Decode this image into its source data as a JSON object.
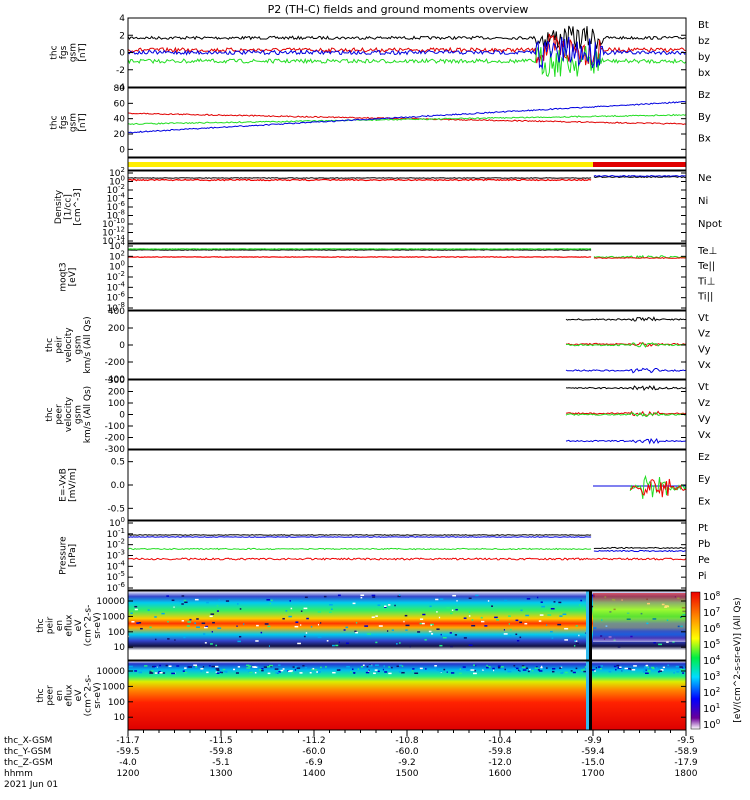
{
  "title": "P2 (TH-C) fields and ground moments overview",
  "colors": {
    "black": "#000000",
    "red": "#e00000",
    "green": "#22dd22",
    "blue": "#0000e0",
    "yellow": "#ffee00",
    "spec_red": "#ee2200"
  },
  "time_axis": {
    "start_hhmm": "1200",
    "end_hhmm": "1800",
    "row_labels": [
      "thc_X-GSM",
      "thc_Y-GSM",
      "thc_Z-GSM",
      "hhmm",
      "2021 Jun 01"
    ],
    "ticks": [
      {
        "x": "-11.7",
        "y": "-59.5",
        "z": "-4.0",
        "hhmm": "1200"
      },
      {
        "x": "-11.5",
        "y": "-59.8",
        "z": "-5.1",
        "hhmm": "1300"
      },
      {
        "x": "-11.2",
        "y": "-60.0",
        "z": "-6.9",
        "hhmm": "1400"
      },
      {
        "x": "-10.8",
        "y": "-60.0",
        "z": "-9.2",
        "hhmm": "1500"
      },
      {
        "x": "-10.4",
        "y": "-59.8",
        "z": "-12.0",
        "hhmm": "1600"
      },
      {
        "x": "-9.9",
        "y": "-59.4",
        "z": "-15.0",
        "hhmm": "1700"
      },
      {
        "x": "-9.5",
        "y": "-58.9",
        "z": "-17.9",
        "hhmm": "1800"
      }
    ]
  },
  "colorbar": {
    "label": "[eV/(cm^2-s-sr-eV)] (All Qs)",
    "ticks": [
      "10^8",
      "10^7",
      "10^6",
      "10^5",
      "10^4",
      "10^3",
      "10^2",
      "10^1",
      "10^0"
    ]
  },
  "chart_data": [
    {
      "type": "line",
      "ylabel": [
        "thc",
        "fgs",
        "gsm",
        "[nT]"
      ],
      "ylim": [
        -4,
        4
      ],
      "yticks": [
        "4",
        "2",
        "0",
        "-2",
        "-4"
      ],
      "legend": [
        "Bt",
        "bz",
        "by",
        "bx"
      ],
      "series": [
        {
          "name": "Bt",
          "level": 1.7,
          "color": "black"
        },
        {
          "name": "bz",
          "level": 0.3,
          "color": "red"
        },
        {
          "name": "by",
          "level": -1.0,
          "color": "green"
        },
        {
          "name": "bx",
          "level": 0.0,
          "color": "blue"
        }
      ]
    },
    {
      "type": "line",
      "ylabel": [
        "thc",
        "fgs",
        "gsm",
        "[nT]"
      ],
      "ylim": [
        -10,
        80
      ],
      "yticks": [
        "80",
        "60",
        "40",
        "20",
        "0"
      ],
      "legend": [
        "Bz",
        "By",
        "Bx"
      ],
      "series": [
        {
          "name": "Bz",
          "start": 47,
          "end": 33,
          "color": "red"
        },
        {
          "name": "By",
          "start": 33,
          "end": 45,
          "color": "green"
        },
        {
          "name": "Bx",
          "start": 22,
          "end": 62,
          "color": "blue"
        }
      ]
    },
    {
      "type": "bar",
      "ylabel": [],
      "legend": [],
      "segments": [
        {
          "from": "1200",
          "to": "1700",
          "color": "yellow"
        },
        {
          "from": "1700",
          "to": "1800",
          "color": "red"
        }
      ]
    },
    {
      "type": "line",
      "scale": "log",
      "ylabel": [
        "Density",
        "[1/cc]",
        "[cm^-3]"
      ],
      "yticks": [
        "10^2",
        "10^0",
        "10^-2",
        "10^-4",
        "10^-6",
        "10^-8",
        "10^-10",
        "10^-12",
        "10^-14"
      ],
      "legend": [
        "Ne",
        "Ni",
        "Npot"
      ]
    },
    {
      "type": "line",
      "scale": "log",
      "ylabel": [
        "moqt3",
        "[eV]"
      ],
      "yticks": [
        "10^4",
        "10^2",
        "10^0",
        "10^-2",
        "10^-4",
        "10^-6",
        "10^-8"
      ],
      "legend": [
        "Te⊥",
        "Te||",
        "Ti⊥",
        "Ti||"
      ]
    },
    {
      "type": "line",
      "ylabel": [
        "thc",
        "peir",
        "velocity",
        "gsm",
        "km/s (All Qs)"
      ],
      "ylim": [
        -400,
        400
      ],
      "yticks": [
        "400",
        "200",
        "0",
        "-200",
        "-400"
      ],
      "legend": [
        "Vt",
        "Vz",
        "Vy",
        "Vx"
      ],
      "series": [
        {
          "name": "Vt",
          "level": 300,
          "color": "black"
        },
        {
          "name": "Vz",
          "level": 10,
          "color": "red"
        },
        {
          "name": "Vy",
          "level": 0,
          "color": "green"
        },
        {
          "name": "Vx",
          "level": -300,
          "color": "blue"
        }
      ]
    },
    {
      "type": "line",
      "ylabel": [
        "thc",
        "peer",
        "velocity",
        "gsm",
        "km/s (All Qs)"
      ],
      "ylim": [
        -300,
        300
      ],
      "yticks": [
        "300",
        "200",
        "100",
        "0",
        "-100",
        "-200",
        "-300"
      ],
      "legend": [
        "Vt",
        "Vz",
        "Vy",
        "Vx"
      ],
      "series": [
        {
          "name": "Vt",
          "level": 230,
          "color": "black"
        },
        {
          "name": "Vz",
          "level": 10,
          "color": "red"
        },
        {
          "name": "Vy",
          "level": 0,
          "color": "green"
        },
        {
          "name": "Vx",
          "level": -230,
          "color": "blue"
        }
      ]
    },
    {
      "type": "line",
      "ylabel": [
        "E=-VxB",
        "[mV/m]"
      ],
      "ylim": [
        -0.75,
        0.75
      ],
      "yticks": [
        "0.5",
        "0.0",
        "-0.5"
      ],
      "legend": [
        "Ez",
        "Ey",
        "Ex"
      ]
    },
    {
      "type": "line",
      "scale": "log",
      "ylabel": [
        "Pressure",
        "[nPa]"
      ],
      "yticks": [
        "10^0",
        "10^-1",
        "10^-2",
        "10^-3",
        "10^-4",
        "10^-5",
        "10^-6"
      ],
      "legend": [
        "Pt",
        "Pb",
        "Pe",
        "Pi"
      ]
    },
    {
      "type": "heatmap",
      "ylabel": [
        "thc",
        "peir",
        "en",
        "eflux",
        "eV",
        "(cm^2-s-",
        "sr-eV)"
      ],
      "yticks": [
        "10000",
        "1000",
        "100",
        "10"
      ],
      "legend": []
    },
    {
      "type": "heatmap",
      "ylabel": [
        "thc",
        "peer",
        "en",
        "eflux",
        "eV",
        "(cm^2-s-",
        "sr-eV)"
      ],
      "yticks": [
        "10000",
        "1000",
        "100",
        "10"
      ],
      "legend": []
    }
  ]
}
